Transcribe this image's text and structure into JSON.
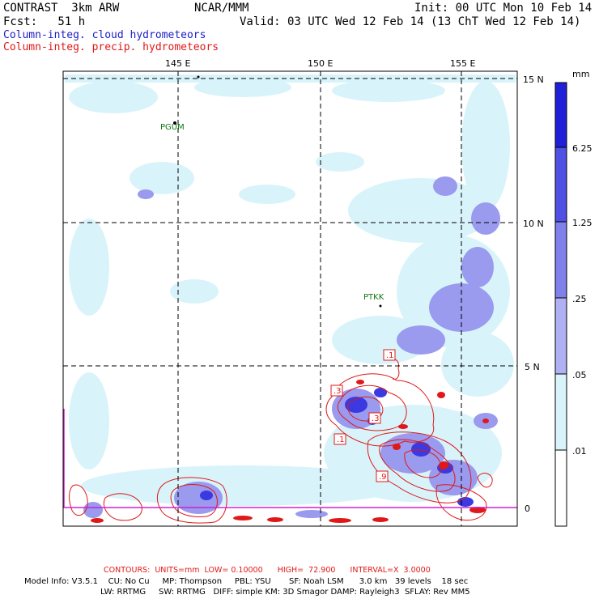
{
  "header": {
    "model": "CONTRAST  3km ARW",
    "org": "NCAR/MMM",
    "init": "Init: 00 UTC Mon 10 Feb 14",
    "fcst": "Fcst:   51 h",
    "valid": "Valid: 03 UTC Wed 12 Feb 14 (13 ChT Wed 12 Feb 14)",
    "field1": "Column-integ. cloud hydrometeors",
    "field2": "Column-integ. precip. hydrometeors"
  },
  "map": {
    "lon_labels": [
      "145 E",
      "150 E",
      "155 E"
    ],
    "lat_labels": [
      "15 N",
      "10 N",
      "5 N",
      "0"
    ],
    "stations": [
      "PGUM",
      "PTKK"
    ],
    "contour_labels": [
      ".1",
      ".3",
      ".1",
      ".3",
      ".9"
    ]
  },
  "colorbar": {
    "units": "mm",
    "labels": [
      "6.25",
      "1.25",
      ".25",
      ".05",
      ".01"
    ],
    "colors": [
      "#2020d8",
      "#5050e4",
      "#8080ea",
      "#b0b0f4",
      "#d8f4fa",
      "#ffffff"
    ]
  },
  "footer": {
    "contours": "CONTOURS:  UNITS=mm  LOW= 0.10000      HIGH=  72.900      INTERVAL=X  3.0000",
    "model_info1": "Model Info: V3.5.1    CU: No Cu     MP: Thompson     PBL: YSU       SF: Noah LSM      3.0 km   39 levels    18 sec",
    "model_info2": "LW: RRTMG     SW: RRTMG   DIFF: simple KM: 3D Smagor DAMP: Rayleigh3  SFLAY: Rev MM5"
  },
  "colors": {
    "contour": "#e01818",
    "cloud_text": "#1c1cc8",
    "station": "#117711"
  }
}
